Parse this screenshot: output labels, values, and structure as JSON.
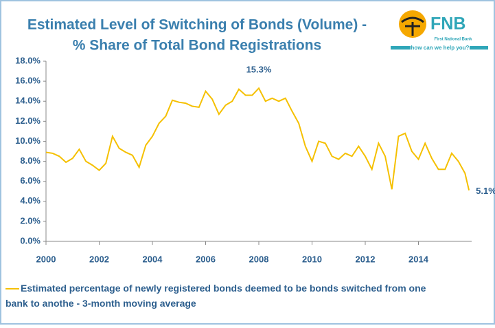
{
  "chart_data": {
    "type": "line",
    "title": [
      "Estimated Level of Switching of Bonds (Volume) -",
      "% Share of Total Bond Registrations"
    ],
    "logo": {
      "brand": "FNB",
      "name": "First National Bank",
      "tagline": "how can we help you?"
    },
    "xlim": [
      2000,
      2016
    ],
    "xticks": [
      2000,
      2002,
      2004,
      2006,
      2008,
      2010,
      2012,
      2014
    ],
    "ylim": [
      0,
      18
    ],
    "yticks": [
      {
        "value": 0,
        "label": "0.0%"
      },
      {
        "value": 2,
        "label": "2.0%"
      },
      {
        "value": 4,
        "label": "4.0%"
      },
      {
        "value": 6,
        "label": "6.0%"
      },
      {
        "value": 8,
        "label": "8.0%"
      },
      {
        "value": 10,
        "label": "10.0%"
      },
      {
        "value": 12,
        "label": "12.0%"
      },
      {
        "value": 14,
        "label": "14.0%"
      },
      {
        "value": 16,
        "label": "16.0%"
      },
      {
        "value": 18,
        "label": "18.0%"
      }
    ],
    "series": [
      {
        "name": "Estimated percentage of newly registered bonds deemed to be bonds switched from one bank to anothe - 3-month moving average",
        "color": "#f5c000",
        "x": [
          2000,
          2000.25,
          2000.5,
          2000.75,
          2001,
          2001.25,
          2001.5,
          2001.75,
          2002,
          2002.25,
          2002.5,
          2002.75,
          2003,
          2003.25,
          2003.5,
          2003.75,
          2004,
          2004.25,
          2004.5,
          2004.75,
          2005,
          2005.25,
          2005.5,
          2005.75,
          2006,
          2006.25,
          2006.5,
          2006.75,
          2007,
          2007.25,
          2007.5,
          2007.75,
          2008,
          2008.25,
          2008.5,
          2008.75,
          2009,
          2009.25,
          2009.5,
          2009.75,
          2010,
          2010.25,
          2010.5,
          2010.75,
          2011,
          2011.25,
          2011.5,
          2011.75,
          2012,
          2012.25,
          2012.5,
          2012.75,
          2013,
          2013.25,
          2013.5,
          2013.75,
          2014,
          2014.25,
          2014.5,
          2014.75,
          2015,
          2015.25,
          2015.5,
          2015.75,
          2015.9
        ],
        "values": [
          8.9,
          8.8,
          8.5,
          7.9,
          8.3,
          9.2,
          8.0,
          7.6,
          7.1,
          7.8,
          10.5,
          9.3,
          8.9,
          8.6,
          7.4,
          9.6,
          10.5,
          11.8,
          12.5,
          14.1,
          13.9,
          13.8,
          13.5,
          13.4,
          15.0,
          14.2,
          12.7,
          13.6,
          14.0,
          15.2,
          14.6,
          14.6,
          15.3,
          14.0,
          14.3,
          14.0,
          14.3,
          13.0,
          11.8,
          9.5,
          8.0,
          10.0,
          9.8,
          8.5,
          8.2,
          8.8,
          8.5,
          9.5,
          8.5,
          7.2,
          9.8,
          8.5,
          5.2,
          10.5,
          10.8,
          9.0,
          8.2,
          9.8,
          8.3,
          7.2,
          7.2,
          8.8,
          8.0,
          6.8,
          5.1
        ]
      }
    ],
    "annotations": [
      {
        "text": "15.3%",
        "x": 2008,
        "y": 15.3
      },
      {
        "text": "5.1%",
        "x": 2015.9,
        "y": 5.1
      }
    ]
  }
}
